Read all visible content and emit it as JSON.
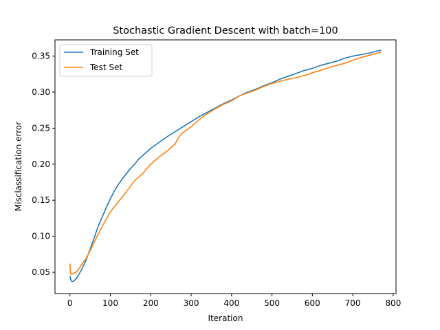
{
  "chart_data": {
    "type": "line",
    "title": "Stochastic Gradient Descent with batch=100",
    "xlabel": "Iteration",
    "ylabel": "Misclassification error",
    "xlim": [
      -37,
      807
    ],
    "ylim": [
      0.0205,
      0.3725
    ],
    "xticks": [
      0,
      100,
      200,
      300,
      400,
      500,
      600,
      700,
      800
    ],
    "yticks": [
      0.05,
      0.1,
      0.15,
      0.2,
      0.25,
      0.3,
      0.35
    ],
    "xtick_labels": [
      "0",
      "100",
      "200",
      "300",
      "400",
      "500",
      "600",
      "700",
      "800"
    ],
    "ytick_labels": [
      "0.05",
      "0.10",
      "0.15",
      "0.20",
      "0.25",
      "0.30",
      "0.35"
    ],
    "grid": false,
    "legend_position": "top-left",
    "series": [
      {
        "name": "Training Set",
        "color": "#1f77b4",
        "x": [
          0,
          2,
          5,
          10,
          15,
          20,
          25,
          30,
          40,
          50,
          60,
          70,
          80,
          90,
          100,
          110,
          120,
          130,
          140,
          150,
          160,
          170,
          180,
          190,
          200,
          220,
          240,
          260,
          280,
          300,
          320,
          340,
          360,
          380,
          400,
          420,
          440,
          460,
          480,
          500,
          520,
          540,
          560,
          580,
          600,
          620,
          640,
          660,
          680,
          700,
          720,
          740,
          760,
          770
        ],
        "y": [
          0.045,
          0.04,
          0.037,
          0.038,
          0.041,
          0.045,
          0.05,
          0.055,
          0.067,
          0.082,
          0.098,
          0.114,
          0.127,
          0.14,
          0.152,
          0.163,
          0.172,
          0.18,
          0.187,
          0.194,
          0.2,
          0.207,
          0.212,
          0.217,
          0.222,
          0.23,
          0.238,
          0.245,
          0.252,
          0.259,
          0.266,
          0.272,
          0.278,
          0.284,
          0.289,
          0.295,
          0.3,
          0.304,
          0.309,
          0.313,
          0.318,
          0.322,
          0.326,
          0.33,
          0.333,
          0.337,
          0.34,
          0.343,
          0.347,
          0.35,
          0.352,
          0.354,
          0.357,
          0.358
        ]
      },
      {
        "name": "Test Set",
        "color": "#ff7f0e",
        "x": [
          0,
          1,
          3,
          5,
          10,
          15,
          20,
          25,
          30,
          40,
          50,
          60,
          70,
          80,
          90,
          100,
          120,
          140,
          160,
          180,
          200,
          220,
          240,
          260,
          270,
          280,
          300,
          320,
          340,
          360,
          380,
          400,
          420,
          440,
          460,
          480,
          500,
          520,
          540,
          560,
          580,
          600,
          620,
          640,
          660,
          680,
          700,
          720,
          740,
          760,
          770
        ],
        "y": [
          0.062,
          0.049,
          0.047,
          0.048,
          0.049,
          0.05,
          0.053,
          0.057,
          0.062,
          0.069,
          0.08,
          0.092,
          0.103,
          0.114,
          0.124,
          0.134,
          0.148,
          0.162,
          0.177,
          0.187,
          0.2,
          0.21,
          0.218,
          0.228,
          0.238,
          0.244,
          0.252,
          0.262,
          0.27,
          0.277,
          0.283,
          0.288,
          0.295,
          0.299,
          0.303,
          0.308,
          0.312,
          0.315,
          0.318,
          0.32,
          0.323,
          0.327,
          0.33,
          0.334,
          0.337,
          0.34,
          0.344,
          0.348,
          0.351,
          0.354,
          0.355
        ]
      }
    ]
  }
}
